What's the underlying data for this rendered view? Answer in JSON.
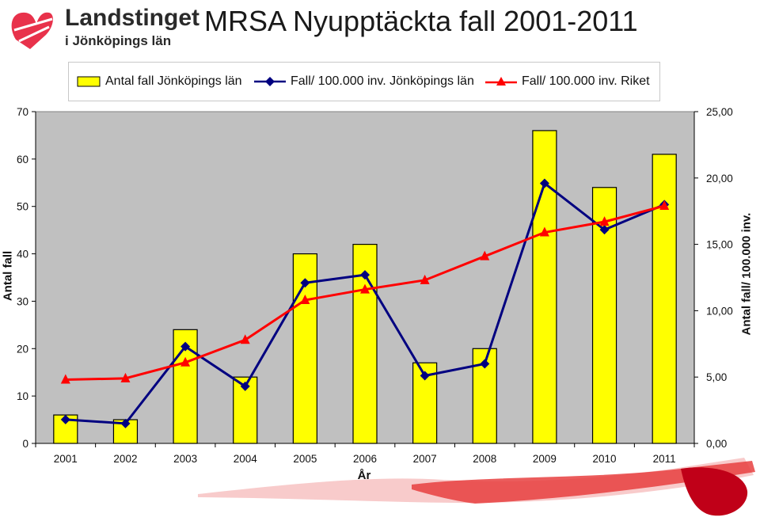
{
  "logo": {
    "name": "Landstinget",
    "sub": "i Jönköpings län"
  },
  "chart_data": {
    "type": "bar",
    "title": "MRSA Nyupptäckta fall 2001-2011",
    "xlabel": "År",
    "ylabel": "Antal fall",
    "y2label": "Antal fall/ 100.000 inv.",
    "categories": [
      "2001",
      "2002",
      "2003",
      "2004",
      "2005",
      "2006",
      "2007",
      "2008",
      "2009",
      "2010",
      "2011"
    ],
    "ylim": [
      0,
      70
    ],
    "y2lim": [
      0,
      25
    ],
    "yticks": [
      "0",
      "10",
      "20",
      "30",
      "40",
      "50",
      "60",
      "70"
    ],
    "y2ticks": [
      "0,00",
      "5,00",
      "10,00",
      "15,00",
      "20,00",
      "25,00"
    ],
    "legend_position": "top",
    "grid": false,
    "series": [
      {
        "name": "Antal fall Jönköpings län",
        "type": "bar",
        "axis": "left",
        "color": "#ffff00",
        "values": [
          6,
          5,
          24,
          14,
          40,
          42,
          17,
          20,
          66,
          54,
          61
        ]
      },
      {
        "name": "Fall/ 100.000 inv. Jönköpings län",
        "type": "line",
        "axis": "right",
        "color": "#000080",
        "marker": "diamond",
        "values": [
          1.8,
          1.5,
          7.3,
          4.3,
          12.1,
          12.7,
          5.1,
          6.0,
          19.6,
          16.1,
          18.0
        ]
      },
      {
        "name": "Fall/ 100.000 inv. Riket",
        "type": "line",
        "axis": "right",
        "color": "#ff0000",
        "marker": "triangle",
        "values": [
          4.8,
          4.9,
          6.1,
          7.8,
          10.8,
          11.6,
          12.3,
          14.1,
          15.9,
          16.7,
          17.9
        ]
      }
    ]
  }
}
